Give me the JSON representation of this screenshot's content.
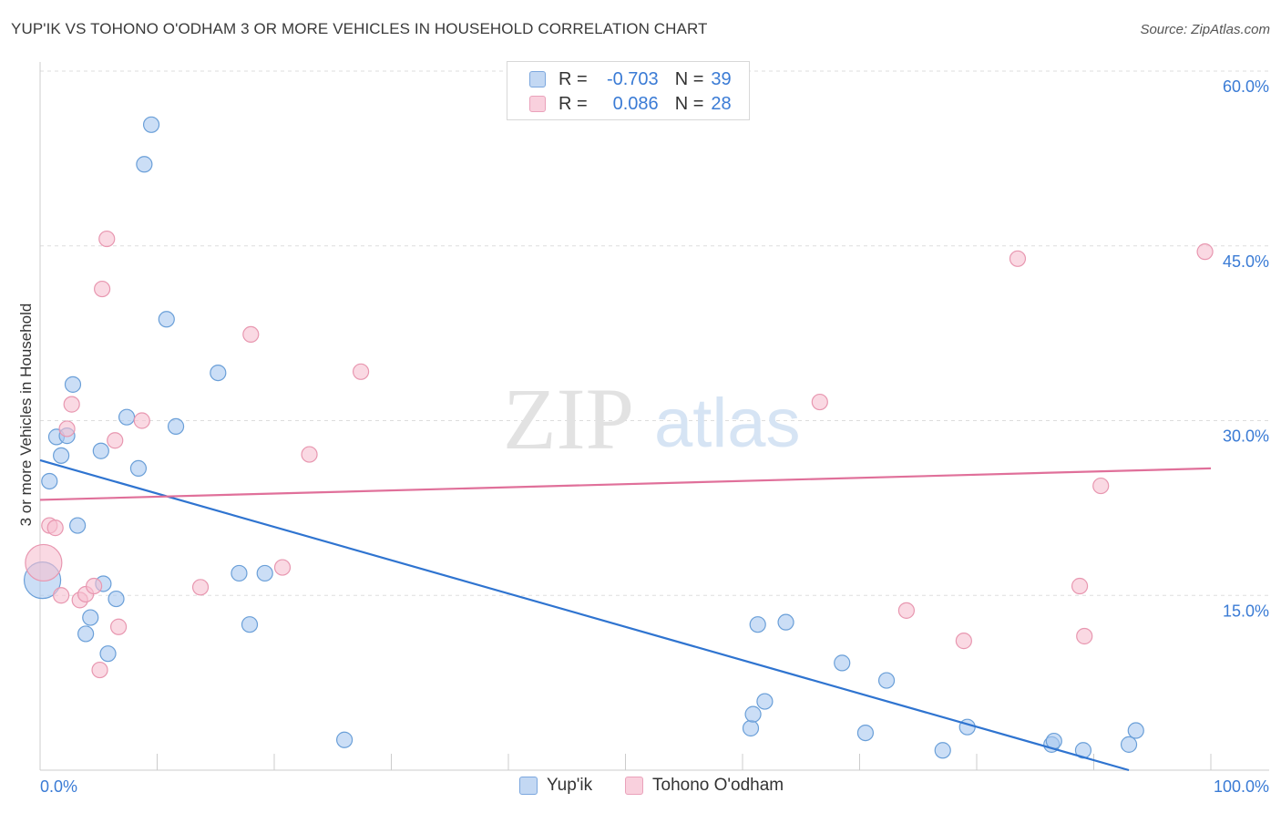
{
  "header": {
    "title": "YUP'IK VS TOHONO O'ODHAM 3 OR MORE VEHICLES IN HOUSEHOLD CORRELATION CHART",
    "source": "Source: ZipAtlas.com"
  },
  "watermark": {
    "part1": "ZIP",
    "part2": "atlas"
  },
  "legend": {
    "rows": [
      {
        "r_label": "R =",
        "r_value": "-0.703",
        "n_label": "N =",
        "n_value": "39"
      },
      {
        "r_label": "R =",
        "r_value": "0.086",
        "n_label": "N =",
        "n_value": "28"
      }
    ]
  },
  "bottom_legend": {
    "series1": "Yup'ik",
    "series2": "Tohono O'odham"
  },
  "colors": {
    "blue_fill": "#a9c8f0",
    "blue_stroke": "#6a9fd8",
    "blue_line": "#2f74d0",
    "pink_fill": "#f6bfd0",
    "pink_stroke": "#e897b0",
    "pink_line": "#e0709a",
    "axis_label": "#3a7bd5",
    "grid": "#dddddd"
  },
  "chart_data": {
    "type": "scatter",
    "title": "YUP'IK VS TOHONO O'ODHAM 3 OR MORE VEHICLES IN HOUSEHOLD CORRELATION CHART",
    "xlabel": "",
    "ylabel": "3 or more Vehicles in Household",
    "xlim": [
      0,
      100
    ],
    "ylim": [
      0,
      60
    ],
    "x_tick_labels": [
      {
        "value": 0,
        "label": "0.0%"
      },
      {
        "value": 100,
        "label": "100.0%"
      }
    ],
    "y_tick_labels": [
      {
        "value": 15,
        "label": "15.0%"
      },
      {
        "value": 30,
        "label": "30.0%"
      },
      {
        "value": 45,
        "label": "45.0%"
      },
      {
        "value": 60,
        "label": "60.0%"
      }
    ],
    "grid": true,
    "legend_position": "top-center",
    "series": [
      {
        "name": "Yup'ik",
        "color": "#a9c8f0",
        "r": -0.703,
        "n": 39,
        "trend": {
          "x": [
            0,
            93
          ],
          "y": [
            26.6,
            0
          ]
        },
        "points": [
          {
            "x": 0.2,
            "y": 16.3,
            "big": true
          },
          {
            "x": 0.8,
            "y": 24.8
          },
          {
            "x": 1.4,
            "y": 28.6
          },
          {
            "x": 1.8,
            "y": 27.0
          },
          {
            "x": 2.3,
            "y": 28.7
          },
          {
            "x": 2.8,
            "y": 33.1
          },
          {
            "x": 3.2,
            "y": 21.0
          },
          {
            "x": 3.9,
            "y": 11.7
          },
          {
            "x": 4.3,
            "y": 13.1
          },
          {
            "x": 5.2,
            "y": 27.4
          },
          {
            "x": 5.4,
            "y": 16.0
          },
          {
            "x": 5.8,
            "y": 10.0
          },
          {
            "x": 6.5,
            "y": 14.7
          },
          {
            "x": 7.4,
            "y": 30.3
          },
          {
            "x": 8.4,
            "y": 25.9
          },
          {
            "x": 8.9,
            "y": 52.0
          },
          {
            "x": 9.5,
            "y": 55.4
          },
          {
            "x": 10.8,
            "y": 38.7
          },
          {
            "x": 11.6,
            "y": 29.5
          },
          {
            "x": 15.2,
            "y": 34.1
          },
          {
            "x": 17.0,
            "y": 16.9
          },
          {
            "x": 17.9,
            "y": 12.5
          },
          {
            "x": 19.2,
            "y": 16.9
          },
          {
            "x": 26.0,
            "y": 2.6
          },
          {
            "x": 60.7,
            "y": 3.6
          },
          {
            "x": 60.9,
            "y": 4.8
          },
          {
            "x": 61.3,
            "y": 12.5
          },
          {
            "x": 61.9,
            "y": 5.9
          },
          {
            "x": 63.7,
            "y": 12.7
          },
          {
            "x": 68.5,
            "y": 9.2
          },
          {
            "x": 70.5,
            "y": 3.2
          },
          {
            "x": 72.3,
            "y": 7.7
          },
          {
            "x": 77.1,
            "y": 1.7
          },
          {
            "x": 79.2,
            "y": 3.7
          },
          {
            "x": 86.4,
            "y": 2.2
          },
          {
            "x": 86.6,
            "y": 2.5
          },
          {
            "x": 89.1,
            "y": 1.7
          },
          {
            "x": 93.0,
            "y": 2.2
          },
          {
            "x": 93.6,
            "y": 3.4
          }
        ]
      },
      {
        "name": "Tohono O'odham",
        "color": "#f6bfd0",
        "r": 0.086,
        "n": 28,
        "trend": {
          "x": [
            0,
            100
          ],
          "y": [
            23.2,
            25.9
          ]
        },
        "points": [
          {
            "x": 0.3,
            "y": 17.8,
            "big": true
          },
          {
            "x": 0.8,
            "y": 21.0
          },
          {
            "x": 1.3,
            "y": 20.8
          },
          {
            "x": 1.8,
            "y": 15.0
          },
          {
            "x": 2.3,
            "y": 29.3
          },
          {
            "x": 2.7,
            "y": 31.4
          },
          {
            "x": 3.4,
            "y": 14.6
          },
          {
            "x": 3.9,
            "y": 15.1
          },
          {
            "x": 4.6,
            "y": 15.8
          },
          {
            "x": 5.1,
            "y": 8.6
          },
          {
            "x": 5.3,
            "y": 41.3
          },
          {
            "x": 5.7,
            "y": 45.6
          },
          {
            "x": 6.4,
            "y": 28.3
          },
          {
            "x": 6.7,
            "y": 12.3
          },
          {
            "x": 8.7,
            "y": 30.0
          },
          {
            "x": 13.7,
            "y": 15.7
          },
          {
            "x": 18.0,
            "y": 37.4
          },
          {
            "x": 20.7,
            "y": 17.4
          },
          {
            "x": 23.0,
            "y": 27.1
          },
          {
            "x": 27.4,
            "y": 34.2
          },
          {
            "x": 66.6,
            "y": 31.6
          },
          {
            "x": 74.0,
            "y": 13.7
          },
          {
            "x": 78.9,
            "y": 11.1
          },
          {
            "x": 83.5,
            "y": 43.9
          },
          {
            "x": 88.8,
            "y": 15.8
          },
          {
            "x": 89.2,
            "y": 11.5
          },
          {
            "x": 90.6,
            "y": 24.4
          },
          {
            "x": 99.5,
            "y": 44.5
          }
        ]
      }
    ]
  }
}
